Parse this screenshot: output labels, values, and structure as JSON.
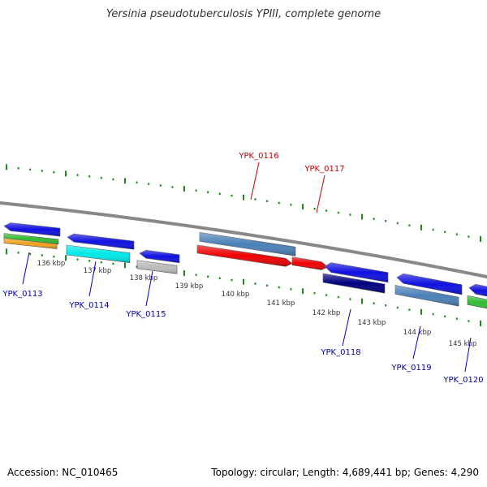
{
  "title": "Yersinia pseudotuberculosis YPIII, complete genome",
  "footer": {
    "accession": "Accession: NC_010465",
    "topology": "Topology: circular; Length: 4,689,441 bp; Genes: 4,290"
  },
  "colors": {
    "backbone": "#888888",
    "tick": "#1a8a1a",
    "tick_label": "#333333",
    "label_blue": "#0000aa",
    "label_red": "#cc0000",
    "leader_blue": "#0000cc",
    "leader_red": "#cc0000"
  },
  "ticks": [
    "136 kbp",
    "137 kbp",
    "138 kbp",
    "139 kbp",
    "140 kbp",
    "141 kbp",
    "142 kbp",
    "143 kbp",
    "144 kbp",
    "145 kbp"
  ],
  "features": [
    {
      "id": "f-0113-fwd",
      "color": "#1010e0"
    },
    {
      "id": "f-0113-green",
      "color": "#33bb33"
    },
    {
      "id": "f-0113-orange",
      "color": "#f0a020"
    },
    {
      "id": "f-0114-fwd",
      "color": "#1010e0"
    },
    {
      "id": "f-0114-cyan",
      "color": "#00e8e8"
    },
    {
      "id": "f-0115-fwd",
      "color": "#1010e0"
    },
    {
      "id": "f-0115-gray",
      "color": "#bbbbbb"
    },
    {
      "id": "f-0116-steel",
      "color": "#4a80b8"
    },
    {
      "id": "f-0116-red",
      "color": "#ee0000"
    },
    {
      "id": "f-0117-red",
      "color": "#ee0000"
    },
    {
      "id": "f-0118-fwd",
      "color": "#1010e0"
    },
    {
      "id": "f-0118-navy",
      "color": "#000080"
    },
    {
      "id": "f-0119-fwd",
      "color": "#1010e0"
    },
    {
      "id": "f-0119-steel",
      "color": "#4a80b8"
    },
    {
      "id": "f-0120-fwd",
      "color": "#1010e0"
    },
    {
      "id": "f-0120-green",
      "color": "#33bb33"
    }
  ],
  "gene_labels": [
    {
      "id": "l-0113",
      "text": "YPK_0113",
      "type": "blue"
    },
    {
      "id": "l-0114",
      "text": "YPK_0114",
      "type": "blue"
    },
    {
      "id": "l-0115",
      "text": "YPK_0115",
      "type": "blue"
    },
    {
      "id": "l-0116",
      "text": "YPK_0116",
      "type": "red"
    },
    {
      "id": "l-0117",
      "text": "YPK_0117",
      "type": "red"
    },
    {
      "id": "l-0118",
      "text": "YPK_0118",
      "type": "blue"
    },
    {
      "id": "l-0119",
      "text": "YPK_0119",
      "type": "blue"
    },
    {
      "id": "l-0120",
      "text": "YPK_0120",
      "type": "blue"
    }
  ]
}
